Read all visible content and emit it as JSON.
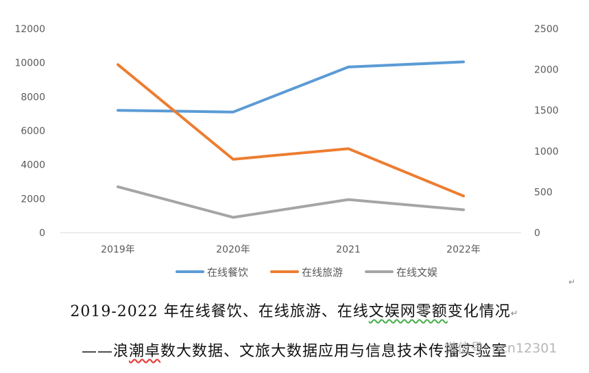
{
  "chart_data": {
    "type": "line",
    "categories": [
      "2019年",
      "2020年",
      "2021",
      "2022年"
    ],
    "y_left": {
      "ticks": [
        "0",
        "2000",
        "4000",
        "6000",
        "8000",
        "10000",
        "12000"
      ],
      "lim": [
        0,
        12000
      ]
    },
    "y_right": {
      "ticks": [
        "0",
        "500",
        "1000",
        "1500",
        "2000",
        "2500"
      ],
      "lim": [
        0,
        2500
      ]
    },
    "series": [
      {
        "name": "在线餐饮",
        "axis": "left",
        "values": [
          7200,
          7100,
          9750,
          10050
        ],
        "color": "#5b9bd5"
      },
      {
        "name": "在线旅游",
        "axis": "right",
        "values": [
          2060,
          900,
          1030,
          450
        ],
        "color": "#ed7d31"
      },
      {
        "name": "在线文娱",
        "axis": "left",
        "values": [
          2700,
          900,
          1950,
          1350
        ],
        "color": "#a5a5a5"
      }
    ],
    "legend_position": "bottom",
    "grid": false
  },
  "caption": {
    "line1_a": "2019-2022 年在线餐饮、在线旅游、在线",
    "line1_b": "文娱网零额",
    "line1_c": "变化情况",
    "line2_a": "——浪",
    "line2_b": "潮卓",
    "line2_c": "数大数据、文旅大数据应用与信息技术传播实验室"
  },
  "watermark": "微信号: ncn12301",
  "return_mark": "↵"
}
